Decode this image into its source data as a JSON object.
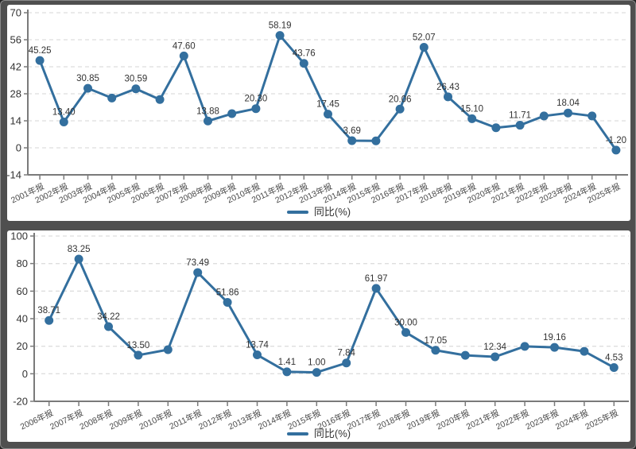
{
  "colors": {
    "line": "#336f9e",
    "point_label_text": "#333333",
    "axis": "#7a7a7a",
    "grid": "#dedede",
    "y_tick_text": "#333333",
    "x_tick_text": "#4a4a4a",
    "frame": "#4f4f4f",
    "panel_bg": "#ffffff"
  },
  "chart_data": [
    {
      "type": "line",
      "title": "",
      "xlabel": "",
      "ylabel": "",
      "legend_position": "bottom-center",
      "grid": "horizontal-dashed",
      "ylim": [
        -14,
        70
      ],
      "yticks": [
        70,
        56,
        42,
        28,
        14,
        0,
        -14
      ],
      "categories": [
        "2001年报",
        "2002年报",
        "2003年报",
        "2004年报",
        "2005年报",
        "2006年报",
        "2007年报",
        "2008年报",
        "2009年报",
        "2010年报",
        "2011年报",
        "2012年报",
        "2013年报",
        "2014年报",
        "2015年报",
        "2016年报",
        "2017年报",
        "2018年报",
        "2019年报",
        "2020年报",
        "2021年报",
        "2022年报",
        "2023年报",
        "2024年报",
        "2025年报"
      ],
      "series": [
        {
          "name": "同比(%)",
          "values": [
            45.25,
            13.4,
            30.85,
            25.8,
            30.59,
            25.0,
            47.6,
            13.88,
            17.7,
            20.3,
            58.19,
            43.76,
            17.45,
            3.69,
            3.6,
            20.06,
            52.07,
            26.43,
            15.1,
            10.4,
            11.71,
            16.5,
            18.04,
            16.5,
            -1.2
          ]
        }
      ],
      "point_labels": [
        "45.25",
        "13.40",
        "30.85",
        "",
        "30.59",
        "",
        "47.60",
        "13.88",
        "",
        "20.30",
        "58.19",
        "43.76",
        "17.45",
        "3.69",
        "",
        "20.06",
        "52.07",
        "26.43",
        "15.10",
        "",
        "11.71",
        "",
        "18.04",
        "",
        "-1.20"
      ]
    },
    {
      "type": "line",
      "title": "",
      "xlabel": "",
      "ylabel": "",
      "legend_position": "bottom-center",
      "grid": "horizontal-dashed",
      "ylim": [
        -20,
        100
      ],
      "yticks": [
        100,
        80,
        60,
        40,
        20,
        0,
        -20
      ],
      "categories": [
        "2006年报",
        "2007年报",
        "2008年报",
        "2009年报",
        "2010年报",
        "2011年报",
        "2012年报",
        "2013年报",
        "2014年报",
        "2015年报",
        "2016年报",
        "2017年报",
        "2018年报",
        "2019年报",
        "2020年报",
        "2021年报",
        "2022年报",
        "2023年报",
        "2024年报",
        "2025年报"
      ],
      "series": [
        {
          "name": "同比(%)",
          "values": [
            38.71,
            83.25,
            34.22,
            13.5,
            17.5,
            73.49,
            51.86,
            13.74,
            1.41,
            1.0,
            7.84,
            61.97,
            30.0,
            17.05,
            13.4,
            12.34,
            19.9,
            19.16,
            16.3,
            4.53
          ]
        }
      ],
      "point_labels": [
        "38.71",
        "83.25",
        "34.22",
        "13.50",
        "",
        "73.49",
        "51.86",
        "13.74",
        "1.41",
        "1.00",
        "7.84",
        "61.97",
        "30.00",
        "17.05",
        "",
        "12.34",
        "",
        "19.16",
        "",
        "4.53"
      ]
    }
  ]
}
